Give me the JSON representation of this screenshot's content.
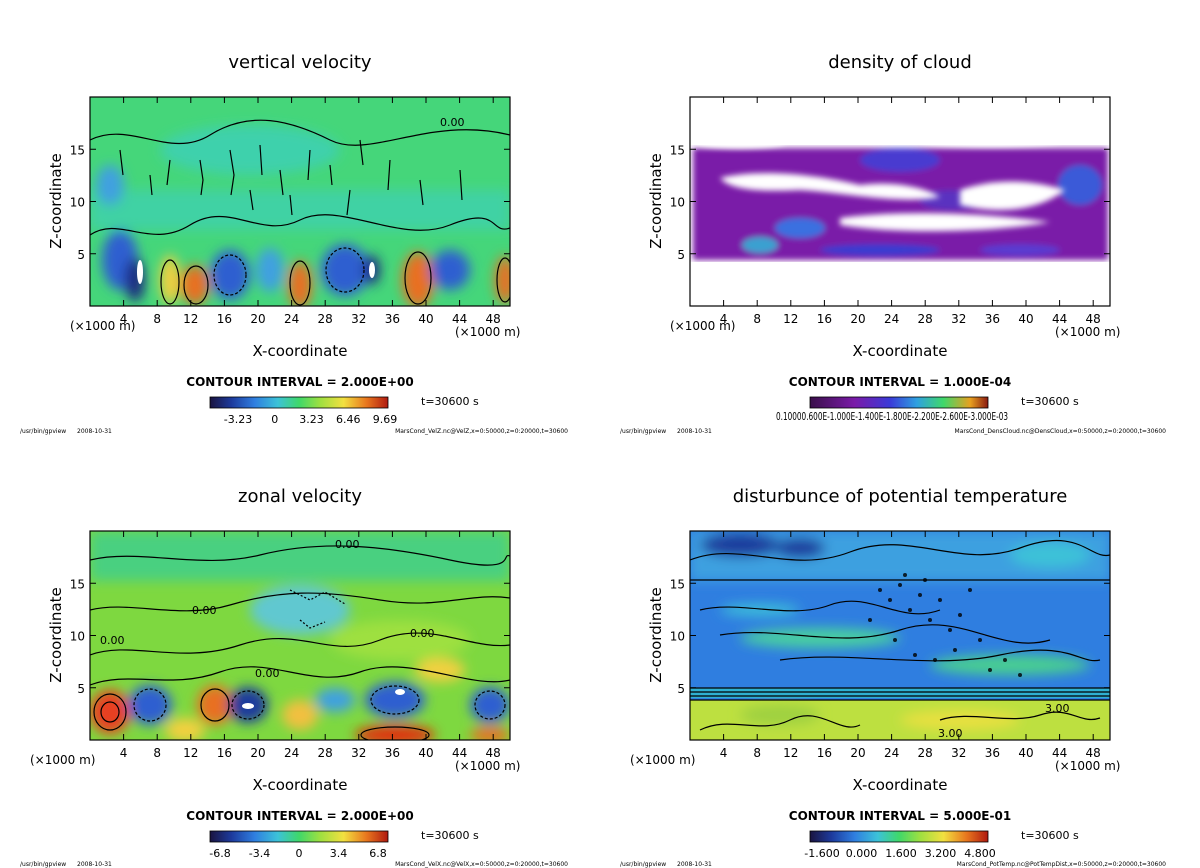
{
  "common": {
    "x_unit": "(×1000 m)",
    "x_label": "X-coordinate",
    "y_label": "Z-coordinate",
    "time": "t=30600 s",
    "program": "/usr/bin/gpview",
    "date": "2008-10-31"
  },
  "chart_data": [
    {
      "type": "heatmap",
      "title": "vertical velocity",
      "contour_interval": "CONTOUR INTERVAL = 2.000E+00",
      "xlim": [
        0,
        50
      ],
      "ylim": [
        0,
        20
      ],
      "x_ticks": [
        4,
        8,
        12,
        16,
        20,
        24,
        28,
        32,
        36,
        40,
        44,
        48
      ],
      "y_ticks": [
        5,
        10,
        15
      ],
      "colorbar_ticks": [
        "-3.23",
        "0",
        "3.23",
        "6.46",
        "9.69"
      ],
      "contour_labels": [
        "0.00"
      ],
      "source": "MarsCond_VelZ.nc@VelZ,x=0:50000,z=0:20000,t=30600"
    },
    {
      "type": "heatmap",
      "title": "density of cloud",
      "contour_interval": "CONTOUR INTERVAL = 1.000E-04",
      "xlim": [
        0,
        50
      ],
      "ylim": [
        0,
        20
      ],
      "x_ticks": [
        4,
        8,
        12,
        16,
        20,
        24,
        28,
        32,
        36,
        40,
        44,
        48
      ],
      "y_ticks": [
        5,
        10,
        15
      ],
      "colorbar_ticks": [
        "0.10000.600E-1.000E-1.400E-1.800E-2.200E-2.600E-3.000E-03"
      ],
      "contour_labels": [],
      "source": "MarsCond_DensCloud.nc@DensCloud,x=0:50000,z=0:20000,t=30600"
    },
    {
      "type": "heatmap",
      "title": "zonal velocity",
      "contour_interval": "CONTOUR INTERVAL = 2.000E+00",
      "xlim": [
        0,
        50
      ],
      "ylim": [
        0,
        20
      ],
      "x_ticks": [
        4,
        8,
        12,
        16,
        20,
        24,
        28,
        32,
        36,
        40,
        44,
        48
      ],
      "y_ticks": [
        5,
        10,
        15
      ],
      "colorbar_ticks": [
        "-6.8",
        "-3.4",
        "0",
        "3.4",
        "6.8"
      ],
      "contour_labels": [
        "0.00",
        "0.00",
        "0.00",
        "0.00",
        "0.00"
      ],
      "source": "MarsCond_VelX.nc@VelX,x=0:50000,z=0:20000,t=30600"
    },
    {
      "type": "heatmap",
      "title": "disturbunce of potential temperature",
      "contour_interval": "CONTOUR INTERVAL = 5.000E-01",
      "xlim": [
        0,
        50
      ],
      "ylim": [
        0,
        20
      ],
      "x_ticks": [
        4,
        8,
        12,
        16,
        20,
        24,
        28,
        32,
        36,
        40,
        44,
        48
      ],
      "y_ticks": [
        5,
        10,
        15
      ],
      "colorbar_ticks": [
        "-1.600",
        "0.000",
        "1.600",
        "3.200",
        "4.800"
      ],
      "contour_labels": [
        "3.00",
        "3.00"
      ],
      "source": "MarsCond_PotTemp.nc@PotTempDist,x=0:50000,z=0:20000,t=30600"
    }
  ]
}
